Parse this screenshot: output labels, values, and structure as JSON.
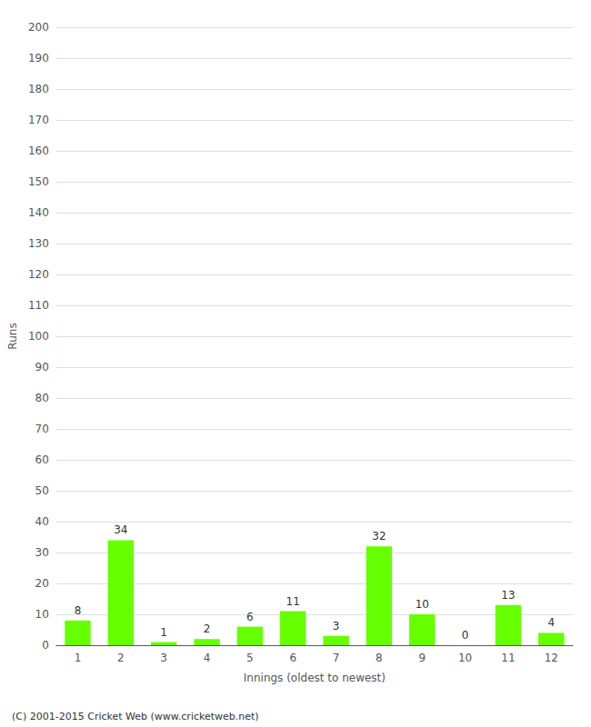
{
  "chart_data": {
    "type": "bar",
    "categories": [
      "1",
      "2",
      "3",
      "4",
      "5",
      "6",
      "7",
      "8",
      "9",
      "10",
      "11",
      "12"
    ],
    "values": [
      8,
      34,
      1,
      2,
      6,
      11,
      3,
      32,
      10,
      0,
      13,
      4
    ],
    "color": "#66ff00",
    "xlabel": "Innings (oldest to newest)",
    "ylabel": "Runs",
    "ylim": [
      0,
      200
    ],
    "yticks": [
      0,
      10,
      20,
      30,
      40,
      50,
      60,
      70,
      80,
      90,
      100,
      110,
      120,
      130,
      140,
      150,
      160,
      170,
      180,
      190,
      200
    ],
    "grid": true,
    "data_labels": true,
    "annotations": [
      "(C) 2001-2015 Cricket Web (www.cricketweb.net)"
    ]
  }
}
